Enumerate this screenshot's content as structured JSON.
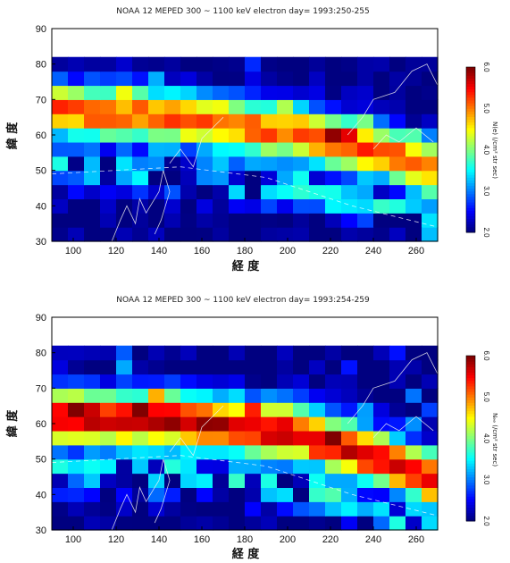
{
  "panels": [
    {
      "title": "NOAA 12 MEPED 300 ~ 1100 keV electron day= 1993:250-255",
      "xlabel": "経 度",
      "ylabel": "緯 度",
      "colorbar_label": "N(e) (/cm² str sec)"
    },
    {
      "title": "NOAA 12 MEPED 300 ~ 1100 keV electron day= 1993:254-259",
      "xlabel": "経 度",
      "ylabel": "緯 度",
      "colorbar_label": "Nₑₑ (/cm² str sec)"
    }
  ],
  "chart_data": [
    {
      "type": "heatmap",
      "title": "NOAA 12 MEPED 300 ~ 1100 keV electron day= 1993:250-255",
      "xlabel": "経 度",
      "ylabel": "緯 度",
      "x_ticks": [
        100,
        120,
        140,
        160,
        180,
        200,
        220,
        240,
        260
      ],
      "y_ticks": [
        30,
        40,
        50,
        60,
        70,
        80,
        90
      ],
      "xlim": [
        90,
        270
      ],
      "ylim": [
        30,
        90
      ],
      "colorbar": {
        "label": "N(e) (/cm² str sec)",
        "range": [
          2.0,
          6.0
        ],
        "ticks": [
          "2.0",
          "3.0",
          "4.0",
          "5.0",
          "6.0"
        ]
      },
      "data_lat_max": 82,
      "band": {
        "center_lat_at_lon": [
          [
            90,
            67
          ],
          [
            150,
            65
          ],
          [
            200,
            61
          ],
          [
            240,
            56
          ],
          [
            270,
            50
          ]
        ],
        "peak_value": 5.2
      },
      "description_values": {
        "background": 2.0,
        "band_peak": 5.2,
        "secondary_band": 3.5
      }
    },
    {
      "type": "heatmap",
      "title": "NOAA 12 MEPED 300 ~ 1100 keV electron day= 1993:254-259",
      "xlabel": "経 度",
      "ylabel": "緯 度",
      "x_ticks": [
        100,
        120,
        140,
        160,
        180,
        200,
        220,
        240,
        260
      ],
      "y_ticks": [
        30,
        40,
        50,
        60,
        70,
        80,
        90
      ],
      "xlim": [
        90,
        270
      ],
      "ylim": [
        30,
        90
      ],
      "colorbar": {
        "label": "Nₑₑ (/cm² str sec)",
        "range": [
          2.0,
          6.0
        ],
        "ticks": [
          "2.0",
          "3.0",
          "4.0",
          "5.0",
          "6.0"
        ]
      },
      "data_lat_max": 82,
      "band": {
        "center_lat_at_lon": [
          [
            90,
            62
          ],
          [
            150,
            61
          ],
          [
            200,
            58
          ],
          [
            240,
            51
          ],
          [
            270,
            44
          ]
        ],
        "peak_value": 5.8
      },
      "description_values": {
        "background": 2.0,
        "band_peak": 5.8,
        "secondary_band": 3.6
      }
    }
  ]
}
